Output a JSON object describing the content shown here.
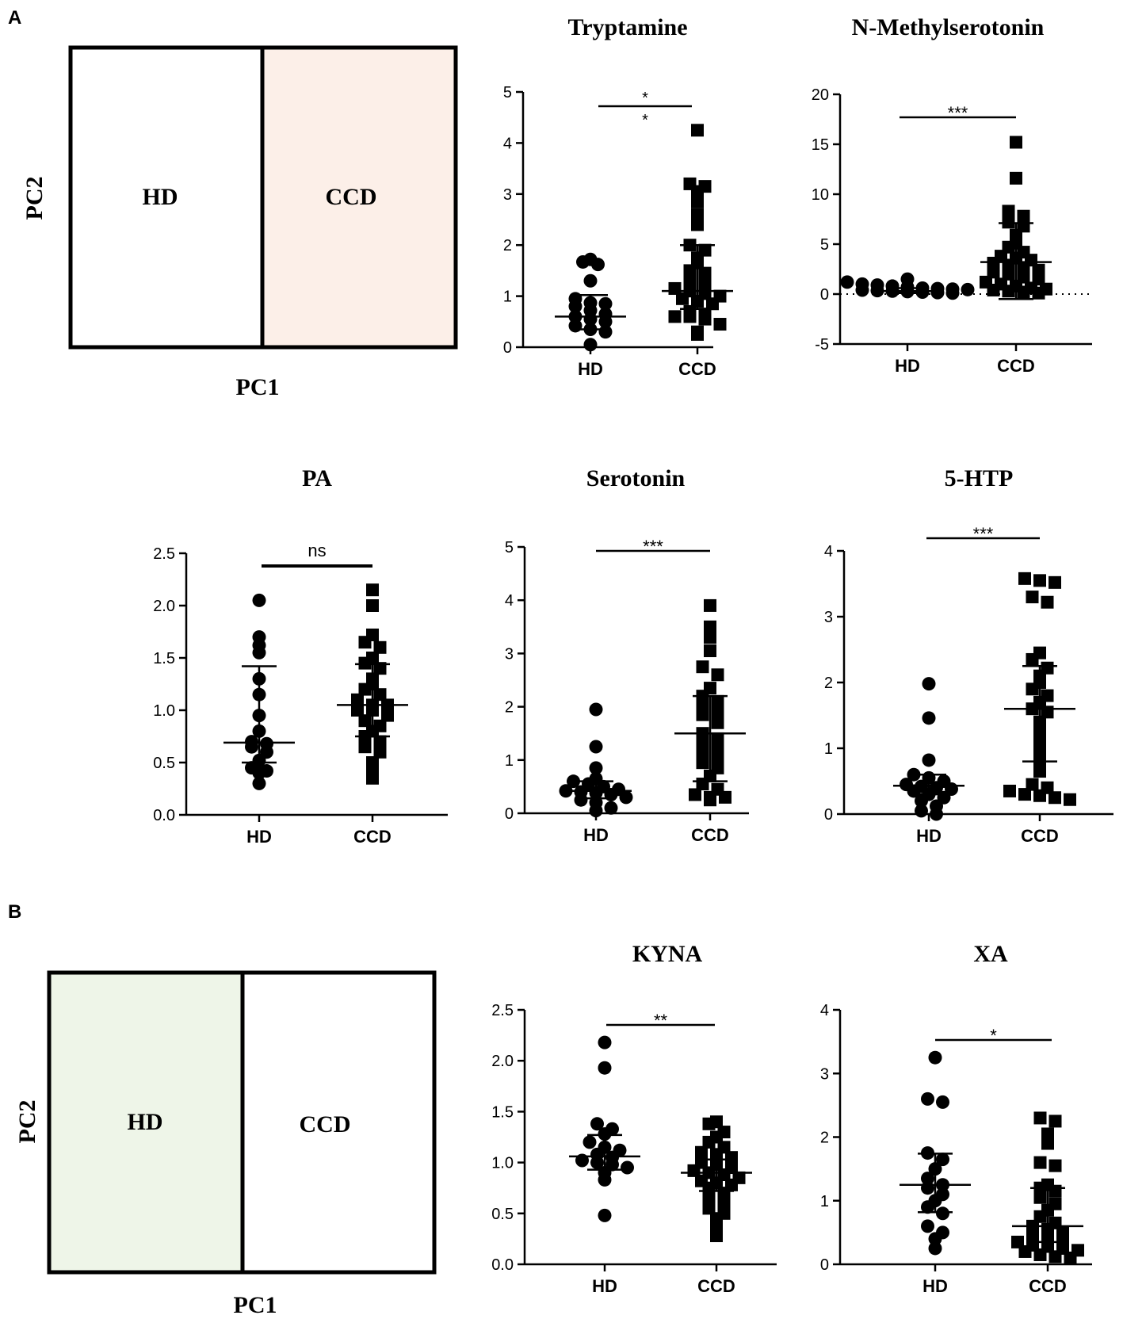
{
  "panel_labels": {
    "a": "A",
    "b": "B"
  },
  "pca_boxes": [
    {
      "left_label": "HD",
      "right_label": "CCD",
      "highlight": "right",
      "fill": "#fcefe8",
      "xlabel": "PC1",
      "ylabel": "PC2"
    },
    {
      "left_label": "HD",
      "right_label": "CCD",
      "highlight": "left",
      "fill": "#eef5e8",
      "xlabel": "PC1",
      "ylabel": "PC2"
    }
  ],
  "chart_data": [
    {
      "type": "scatter",
      "title": "Tryptamine",
      "categories": [
        "HD",
        "CCD"
      ],
      "ylim": [
        0,
        5
      ],
      "yticks": [
        "0",
        "1",
        "2",
        "3",
        "4",
        "5"
      ],
      "sig": "*\n*",
      "zero_line": false,
      "series": [
        {
          "name": "HD",
          "marker": "circle",
          "values": [
            1.72,
            1.67,
            1.62,
            1.3,
            0.95,
            0.87,
            0.85,
            0.8,
            0.72,
            0.65,
            0.6,
            0.55,
            0.5,
            0.42,
            0.35,
            0.3,
            0.05
          ],
          "center": 0.6,
          "low": 0.35,
          "high": 1.02
        },
        {
          "name": "CCD",
          "marker": "square",
          "values": [
            4.25,
            3.2,
            3.15,
            3.05,
            2.85,
            2.6,
            2.4,
            2.0,
            1.9,
            1.75,
            1.65,
            1.5,
            1.45,
            1.3,
            1.25,
            1.15,
            1.1,
            1.05,
            1.0,
            0.95,
            0.9,
            0.85,
            0.7,
            0.65,
            0.6,
            0.6,
            0.55,
            0.45,
            0.3,
            0.25
          ],
          "center": 1.1,
          "low": 0.75,
          "high": 2.0
        }
      ]
    },
    {
      "type": "scatter",
      "title": "N-Methylserotonin",
      "categories": [
        "HD",
        "CCD"
      ],
      "ylim": [
        -5,
        20
      ],
      "yticks": [
        "-5",
        "0",
        "5",
        "10",
        "15",
        "20"
      ],
      "sig": "***",
      "zero_line": true,
      "series": [
        {
          "name": "HD",
          "marker": "circle",
          "values": [
            1.5,
            1.2,
            1.0,
            0.9,
            0.8,
            0.7,
            0.6,
            0.55,
            0.5,
            0.45,
            0.4,
            0.35,
            0.3,
            0.25,
            0.2,
            0.15,
            0.1
          ],
          "center": 0.3,
          "low": 0.1,
          "high": 0.6
        },
        {
          "name": "CCD",
          "marker": "square",
          "values": [
            15.2,
            11.6,
            8.3,
            7.8,
            7.2,
            6.8,
            5.9,
            5.1,
            4.7,
            4.2,
            3.8,
            3.6,
            3.4,
            3.1,
            2.9,
            2.6,
            2.4,
            2.2,
            2.0,
            1.7,
            1.5,
            1.2,
            1.0,
            0.8,
            0.6,
            0.5,
            0.4,
            0.3,
            0.2,
            0.1
          ],
          "center": 3.2,
          "low": -0.5,
          "high": 7.1
        }
      ]
    },
    {
      "type": "scatter",
      "title": "PA",
      "categories": [
        "HD",
        "CCD"
      ],
      "ylim": [
        0,
        2.5
      ],
      "yticks": [
        "0.0",
        "0.5",
        "1.0",
        "1.5",
        "2.0",
        "2.5"
      ],
      "sig": "ns",
      "zero_line": false,
      "series": [
        {
          "name": "HD",
          "marker": "circle",
          "values": [
            2.05,
            1.7,
            1.62,
            1.55,
            1.3,
            1.15,
            0.95,
            0.8,
            0.7,
            0.68,
            0.65,
            0.6,
            0.52,
            0.45,
            0.42,
            0.4,
            0.3
          ],
          "center": 0.69,
          "low": 0.5,
          "high": 1.42
        },
        {
          "name": "CCD",
          "marker": "square",
          "values": [
            2.15,
            2.0,
            1.72,
            1.65,
            1.6,
            1.5,
            1.45,
            1.4,
            1.3,
            1.25,
            1.2,
            1.15,
            1.1,
            1.05,
            1.05,
            1.0,
            1.0,
            0.95,
            0.9,
            0.85,
            0.8,
            0.75,
            0.7,
            0.65,
            0.6,
            0.5,
            0.45,
            0.35
          ],
          "center": 1.05,
          "low": 0.75,
          "high": 1.44
        }
      ]
    },
    {
      "type": "scatter",
      "title": "Serotonin",
      "categories": [
        "HD",
        "CCD"
      ],
      "ylim": [
        0,
        5
      ],
      "yticks": [
        "0",
        "1",
        "2",
        "3",
        "4",
        "5"
      ],
      "sig": "***",
      "zero_line": false,
      "series": [
        {
          "name": "HD",
          "marker": "circle",
          "values": [
            1.95,
            1.25,
            0.85,
            0.65,
            0.6,
            0.55,
            0.5,
            0.45,
            0.42,
            0.4,
            0.38,
            0.35,
            0.3,
            0.25,
            0.2,
            0.1,
            0.05
          ],
          "center": 0.42,
          "low": 0.28,
          "high": 0.6
        },
        {
          "name": "CCD",
          "marker": "square",
          "values": [
            3.9,
            3.5,
            3.3,
            3.05,
            2.75,
            2.6,
            2.35,
            2.2,
            2.1,
            2.0,
            1.9,
            1.85,
            1.7,
            1.5,
            1.4,
            1.3,
            1.2,
            1.1,
            1.0,
            0.95,
            0.85,
            0.7,
            0.55,
            0.45,
            0.35,
            0.3,
            0.25,
            0.3
          ],
          "center": 1.5,
          "low": 0.6,
          "high": 2.2
        }
      ]
    },
    {
      "type": "scatter",
      "title": "5-HTP",
      "categories": [
        "HD",
        "CCD"
      ],
      "ylim": [
        0,
        4
      ],
      "yticks": [
        "0",
        "1",
        "2",
        "3",
        "4"
      ],
      "sig": "***",
      "zero_line": false,
      "series": [
        {
          "name": "HD",
          "marker": "circle",
          "values": [
            1.98,
            1.46,
            0.82,
            0.6,
            0.55,
            0.5,
            0.45,
            0.42,
            0.4,
            0.38,
            0.35,
            0.3,
            0.25,
            0.2,
            0.12,
            0.05,
            0.0
          ],
          "center": 0.43,
          "low": 0.3,
          "high": 0.6
        },
        {
          "name": "CCD",
          "marker": "square",
          "values": [
            3.58,
            3.55,
            3.52,
            3.3,
            3.22,
            2.45,
            2.35,
            2.22,
            2.1,
            2.0,
            1.9,
            1.8,
            1.7,
            1.6,
            1.55,
            1.4,
            1.25,
            1.1,
            0.95,
            0.82,
            0.65,
            0.45,
            0.4,
            0.35,
            0.3,
            0.28,
            0.25,
            0.22
          ],
          "center": 1.6,
          "low": 0.8,
          "high": 2.25
        }
      ]
    },
    {
      "type": "scatter",
      "title": "KYNA",
      "categories": [
        "HD",
        "CCD"
      ],
      "ylim": [
        0,
        2.5
      ],
      "yticks": [
        "0.0",
        "0.5",
        "1.0",
        "1.5",
        "2.0",
        "2.5"
      ],
      "sig": "**",
      "zero_line": false,
      "series": [
        {
          "name": "HD",
          "marker": "circle",
          "values": [
            2.18,
            1.93,
            1.38,
            1.33,
            1.28,
            1.2,
            1.15,
            1.12,
            1.08,
            1.05,
            1.02,
            1.0,
            0.98,
            0.95,
            0.9,
            0.83,
            0.48
          ],
          "center": 1.06,
          "low": 0.93,
          "high": 1.27
        },
        {
          "name": "CCD",
          "marker": "square",
          "values": [
            1.4,
            1.38,
            1.3,
            1.25,
            1.2,
            1.15,
            1.1,
            1.08,
            1.05,
            1.0,
            0.98,
            0.95,
            0.92,
            0.9,
            0.88,
            0.85,
            0.82,
            0.8,
            0.78,
            0.75,
            0.7,
            0.65,
            0.6,
            0.55,
            0.5,
            0.45,
            0.4,
            0.28
          ],
          "center": 0.9,
          "low": 0.72,
          "high": 1.03
        }
      ]
    },
    {
      "type": "scatter",
      "title": "XA",
      "categories": [
        "HD",
        "CCD"
      ],
      "ylim": [
        0,
        4
      ],
      "yticks": [
        "0",
        "1",
        "2",
        "3",
        "4"
      ],
      "sig": "*",
      "zero_line": false,
      "series": [
        {
          "name": "HD",
          "marker": "circle",
          "values": [
            3.25,
            2.6,
            2.55,
            1.75,
            1.65,
            1.5,
            1.35,
            1.25,
            1.2,
            1.1,
            1.0,
            0.9,
            0.8,
            0.6,
            0.5,
            0.4,
            0.25
          ],
          "center": 1.25,
          "low": 0.82,
          "high": 1.74
        },
        {
          "name": "CCD",
          "marker": "square",
          "values": [
            2.3,
            2.25,
            2.05,
            1.9,
            1.6,
            1.55,
            1.25,
            1.2,
            1.15,
            1.05,
            0.95,
            0.85,
            0.75,
            0.65,
            0.6,
            0.55,
            0.5,
            0.45,
            0.4,
            0.38,
            0.35,
            0.3,
            0.28,
            0.25,
            0.22,
            0.2,
            0.15,
            0.12,
            0.1
          ],
          "center": 0.6,
          "low": 0.35,
          "high": 1.2
        }
      ]
    }
  ]
}
